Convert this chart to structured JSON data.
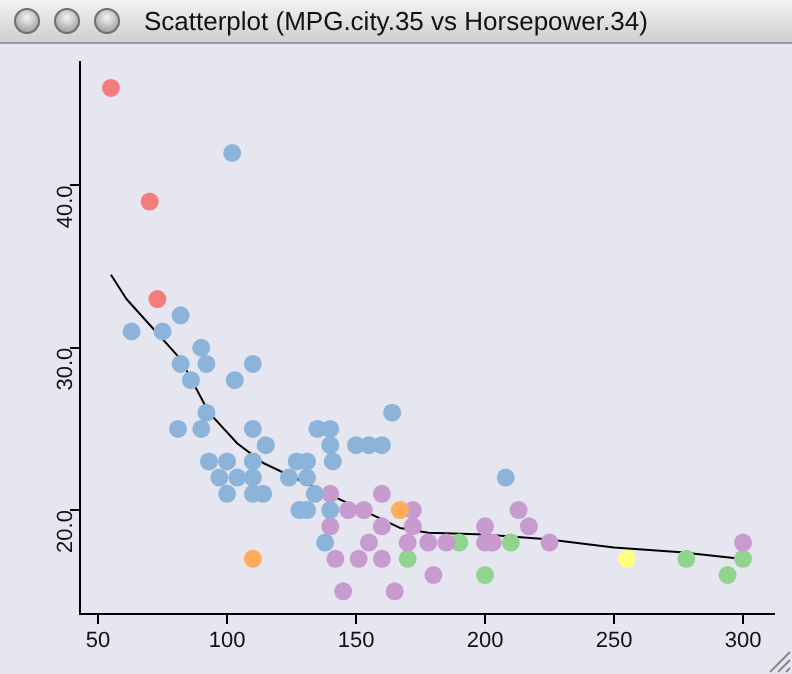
{
  "chart_data": {
    "type": "scatter",
    "title": "Scatterplot (MPG.city.35 vs Horsepower.34)",
    "xlim": [
      43,
      312
    ],
    "ylim": [
      13.6,
      47.6
    ],
    "xticks": [
      50,
      100,
      150,
      200,
      250,
      300
    ],
    "yticks": [
      {
        "value": 20,
        "label": "20.0"
      },
      {
        "value": 30,
        "label": "30.0"
      },
      {
        "value": 40,
        "label": "40.0"
      }
    ],
    "grid": false,
    "legend": false,
    "marker": "circle",
    "series": [
      {
        "color": "#f47c7c",
        "x": [
          55,
          70,
          73
        ],
        "values": [
          46,
          39,
          33
        ]
      },
      {
        "color": "#8cb4da",
        "x": [
          102,
          63,
          75,
          82,
          90,
          92,
          110,
          82,
          86,
          103,
          92,
          81,
          90,
          110,
          115,
          135,
          140,
          140,
          141,
          150,
          155,
          160,
          164,
          93,
          100,
          110,
          127,
          131,
          97,
          104,
          110,
          100,
          110,
          114,
          124,
          131,
          134,
          140,
          128,
          131,
          138,
          208
        ],
        "values": [
          42,
          31,
          31,
          32,
          30,
          29,
          29,
          29,
          28,
          28,
          26,
          25,
          25,
          25,
          24,
          25,
          25,
          24,
          23,
          24,
          24,
          24,
          26,
          23,
          23,
          23,
          23,
          23,
          22,
          22,
          22,
          21,
          21,
          21,
          22,
          22,
          21,
          20,
          20,
          20,
          18,
          22
        ]
      },
      {
        "color": "#ffad5c",
        "x": [
          110,
          167
        ],
        "values": [
          17,
          20
        ]
      },
      {
        "color": "#c79bd0",
        "x": [
          140,
          160,
          147,
          153,
          140,
          160,
          172,
          155,
          142,
          151,
          160,
          170,
          178,
          185,
          180,
          145,
          165,
          200,
          200,
          203,
          213,
          217,
          225,
          300,
          172
        ],
        "values": [
          21,
          21,
          20,
          20,
          19,
          19,
          20,
          18,
          17,
          17,
          17,
          18,
          18,
          18,
          16,
          15,
          15,
          19,
          18,
          18,
          20,
          19,
          18,
          18,
          19
        ]
      },
      {
        "color": "#90d490",
        "x": [
          170,
          190,
          200,
          210,
          278,
          294,
          300
        ],
        "values": [
          17,
          18,
          16,
          18,
          17,
          16,
          17
        ]
      },
      {
        "color": "#ffff80",
        "x": [
          255
        ],
        "values": [
          17
        ]
      },
      {
        "type": "line",
        "marker": "none",
        "color": "#000000",
        "x": [
          55,
          61,
          82,
          93,
          104,
          114,
          126,
          167,
          178,
          200,
          224,
          250,
          276,
          299
        ],
        "values": [
          34.5,
          33,
          29.3,
          26,
          24.1,
          22.9,
          22,
          18.9,
          18.6,
          18.5,
          18.2,
          17.7,
          17.4,
          17
        ]
      }
    ]
  }
}
